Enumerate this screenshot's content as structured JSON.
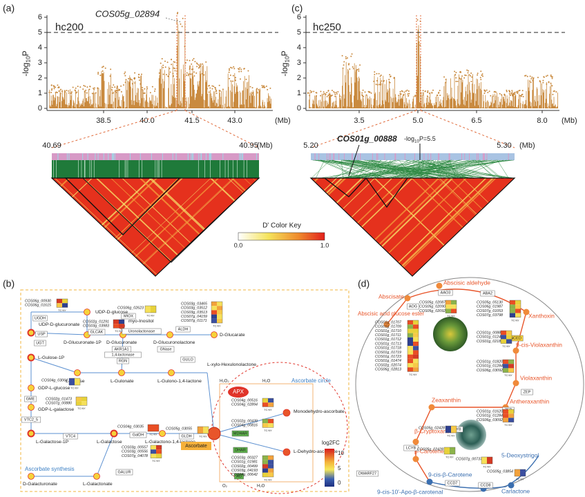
{
  "panels": {
    "a": {
      "label": "(a)",
      "population": "hc200",
      "gene": "COS05g_02894",
      "y_label": [
        "-log",
        "10",
        "P"
      ],
      "yticks": [
        "0",
        "1",
        "2",
        "3",
        "4",
        "5",
        "6"
      ],
      "xticks": [
        "38.5",
        "40.0",
        "41.5",
        "43.0"
      ],
      "x_unit": "(Mb)",
      "region_start": "40.69",
      "region_end": "40.95",
      "region_unit": "(Mb)"
    },
    "c": {
      "label": "(c)",
      "population": "hc250",
      "gene": "COS01g_00888",
      "threshold": [
        "-log",
        "10",
        "P=5.5"
      ],
      "y_label": [
        "-log",
        "10",
        "P"
      ],
      "yticks": [
        "0",
        "1",
        "2",
        "3",
        "4",
        "5",
        "6"
      ],
      "xticks": [
        "3.5",
        "5.0",
        "6.5",
        "8.0"
      ],
      "x_unit": "(Mb)",
      "region_start": "5.20",
      "region_end": "5.30",
      "region_unit": "(Mb)"
    },
    "key": {
      "title": "D' Color Key",
      "min": "0.0",
      "max": "1.0"
    },
    "b": {
      "label": "(b)",
      "tc_ny": "TC NY",
      "apx": "APX",
      "ascorbate": "Ascorbate",
      "ascorbate_circle": "Ascorbate circle",
      "ascorbate_synthesis": "Ascorbate synthesis",
      "legend_title": "log2FC",
      "legend_ticks": [
        "10",
        "5",
        "0"
      ],
      "small_molecules": [
        "H₂O₂",
        "H₂O",
        "O₂",
        "H₂O"
      ],
      "metabolites": [
        "UDP-D-glucose",
        "UDP-D-glucuronate",
        "myo-Inositol",
        "D-Glucuronate-1P",
        "D-Glucuronate",
        "D-Glucuronolactone",
        "D-Glucarate",
        "L-Gulose-1P",
        "L-Gulose",
        "L-Gulonate",
        "L-Gulono-1,4-lactone",
        "L-xylo-Hexulonolactone",
        "GDP-L-glucose",
        "GDP-L-galactose",
        "L-Galactose-1P",
        "L-Galactose",
        "L-Galactono-1,4-lactone",
        "D-Galacturonate",
        "L-Galactonate",
        "Monodehydro-ascorbate",
        "L-Dehydro-ascorbate"
      ],
      "enzymes": [
        "UGDH",
        "USP",
        "UGT",
        "GLCAK",
        "MIOX",
        "Uronolactonase",
        "ALDH",
        "AKR1A1",
        "1,4-lactonase",
        "RGN",
        "GNase",
        "GULO",
        "GME",
        "VTC2_5",
        "VTC4",
        "GalDH",
        "GLDH",
        "GALUR",
        "MDHAR",
        "DHAR",
        "AO"
      ],
      "gene_groups": [
        [
          "COS06g_00930",
          "COS06g_01615"
        ],
        [
          "COS06g_02623"
        ],
        [
          "COS02g_01291",
          "COS03g_03983"
        ],
        [
          "COS03g_03465",
          "COS03g_03512",
          "COS03g_03513",
          "COS07g_04159",
          "COS07g_01171"
        ],
        [
          "COS04g_03064"
        ],
        [
          "COS02g_01473",
          "COS07g_00880"
        ],
        [
          "COS04g_03035"
        ],
        [
          "COS03g_00557",
          "COS03g_00556",
          "COS07g_04078"
        ],
        [
          "COS05g_03055"
        ],
        [
          "COS04g_00516",
          "COS04g_02894"
        ],
        [
          "COS02g_00439",
          "COS04g_00816"
        ],
        [
          "COS03g_00327",
          "COS01g_01981",
          "COS02g_00499",
          "COS03g_04193",
          "COS04g_00642"
        ]
      ]
    },
    "d": {
      "label": "(d)",
      "tc_ny": "TC NY",
      "metabolites": [
        "Abscisate",
        "Abscisic aldehyde",
        "Xanthoxin",
        "9-cis-Violaxanthin",
        "Violaxanthin",
        "Antheraxanthin",
        "Zeaxanthin",
        "β-Cryptoxanthin",
        "β-Carotene",
        "9-cis-β-Carotene",
        "9-cis-10'-Apo-β-carotenal",
        "Carlactone",
        "5-Deoxystrigol",
        "Abscisic acid glucose ester"
      ],
      "enzymes": [
        "AAO3",
        "ABA2",
        "AOG",
        "NCED",
        "ZEP",
        "ZEP",
        "CHYB",
        "LCYB",
        "DWARF27",
        "CCD7",
        "CCD8"
      ],
      "gene_groups": [
        [
          "COS05g_02087",
          "COS05g_02090",
          "COS05g_02092"
        ],
        [
          "COS05g_05130",
          "COS06g_01987",
          "COS07g_01053",
          "COS07g_03798"
        ],
        [
          "COS01g_01707",
          "COS01g_01709",
          "COS01g_01710",
          "COS01g_01711",
          "COS01g_01712",
          "COS01g_01713",
          "COS01g_01718",
          "COS01g_01719",
          "COS01g_01723",
          "COS01g_01474",
          "COS02g_02074",
          "COS06g_02813"
        ],
        [
          "COS01g_00888",
          "COS01g_01244",
          "COS01g_02189"
        ],
        [
          "COS01g_01820",
          "COS01g_01284",
          "COS06g_03092"
        ],
        [
          "COS01g_01620",
          "COS01g_01284",
          "COS06g_03092"
        ],
        [
          "COS05g_02428"
        ],
        [
          "COS05g_02428"
        ],
        [
          "COS07g_00737"
        ],
        [
          "COS05g_03854"
        ]
      ]
    }
  }
}
